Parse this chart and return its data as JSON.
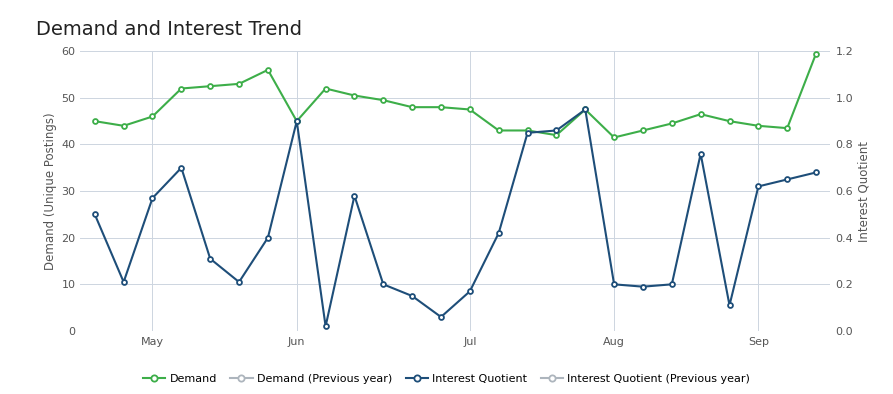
{
  "title": "Demand and Interest Trend",
  "ylabel_left": "Demand (Unique Postings)",
  "ylabel_right": "Interest Quotient",
  "background_color": "#ffffff",
  "grid_color": "#cdd5e0",
  "demand": [
    45.0,
    44.0,
    46.0,
    52.0,
    52.5,
    53.0,
    56.0,
    45.0,
    52.0,
    50.5,
    49.5,
    48.0,
    48.0,
    47.5,
    43.0,
    43.0,
    42.0,
    47.5,
    41.5,
    43.0,
    44.5,
    46.5,
    45.0,
    44.0,
    43.5,
    59.5
  ],
  "interest": [
    25.0,
    10.5,
    28.5,
    35.0,
    15.5,
    10.5,
    20.0,
    45.0,
    1.0,
    29.0,
    10.0,
    7.5,
    3.0,
    8.5,
    21.0,
    42.5,
    43.0,
    47.5,
    10.0,
    9.5,
    10.0,
    38.0,
    5.5,
    31.0,
    32.5,
    34.0
  ],
  "demand_color": "#3dae49",
  "interest_color": "#1e4e79",
  "prev_color": "#adb5bd",
  "ylim_left": [
    0,
    60
  ],
  "ylim_right": [
    0.0,
    1.2
  ],
  "n_points": 26,
  "month_tick_positions": [
    2,
    7,
    13,
    18,
    23
  ],
  "month_tick_labels": [
    "May",
    "Jun",
    "Jul",
    "Aug",
    "Sep"
  ],
  "legend_items": [
    "Demand",
    "Demand (Previous year)",
    "Interest Quotient",
    "Interest Quotient (Previous year)"
  ],
  "title_fontsize": 14,
  "axis_fontsize": 8.5,
  "tick_fontsize": 8,
  "legend_fontsize": 8
}
